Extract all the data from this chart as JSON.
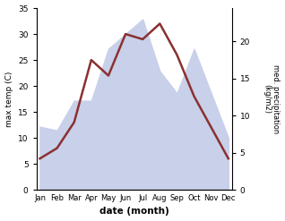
{
  "months": [
    "Jan",
    "Feb",
    "Mar",
    "Apr",
    "May",
    "Jun",
    "Jul",
    "Aug",
    "Sep",
    "Oct",
    "Nov",
    "Dec"
  ],
  "temp": [
    6,
    8,
    13,
    25,
    22,
    30,
    29,
    32,
    26,
    18,
    12,
    6
  ],
  "precip": [
    8.5,
    8,
    12,
    12,
    19,
    21,
    23,
    16,
    13,
    19,
    13,
    7
  ],
  "temp_color": "#8b3030",
  "precip_fill": "#c8d0ea",
  "temp_ylim": [
    0,
    35
  ],
  "precip_ylim": [
    0,
    24.5
  ],
  "precip_yticks": [
    0,
    5,
    10,
    15,
    20
  ],
  "temp_yticks": [
    0,
    5,
    10,
    15,
    20,
    25,
    30,
    35
  ],
  "xlabel": "date (month)",
  "ylabel_left": "max temp (C)",
  "ylabel_right": "med. precipitation\n(kg/m2)",
  "bg_color": "#ffffff"
}
